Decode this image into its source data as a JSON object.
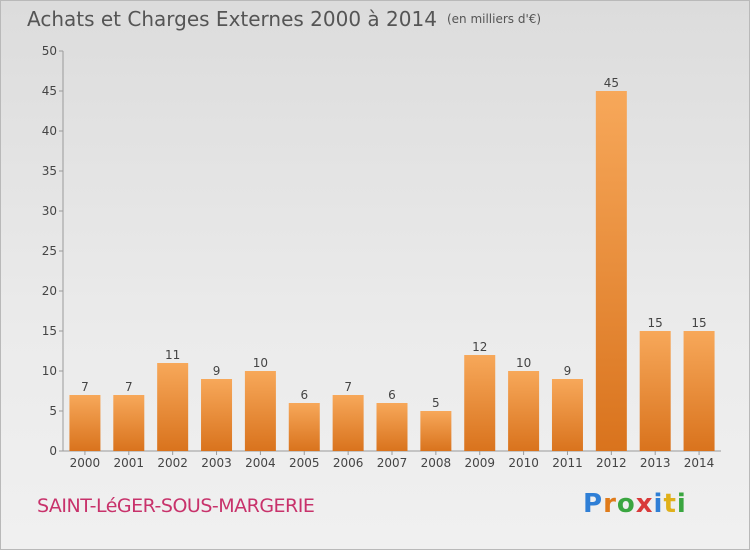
{
  "chart_data": {
    "type": "bar",
    "title": "Achats et Charges Externes 2000 à 2014",
    "unit_label": "(en milliers d'€)",
    "xlabel": "",
    "ylabel": "",
    "categories": [
      "2000",
      "2001",
      "2002",
      "2003",
      "2004",
      "2005",
      "2006",
      "2007",
      "2008",
      "2009",
      "2010",
      "2011",
      "2012",
      "2013",
      "2014"
    ],
    "values": [
      7,
      7,
      11,
      9,
      10,
      6,
      7,
      6,
      5,
      12,
      10,
      9,
      45,
      15,
      15
    ],
    "ylim": [
      0,
      50
    ],
    "yticks": [
      0,
      5,
      10,
      15,
      20,
      25,
      30,
      35,
      40,
      45,
      50
    ],
    "grid": false,
    "bar_color": "#e8892e"
  },
  "footer": {
    "commune": "SAINT-LéGER-SOUS-MARGERIE",
    "brand_letters": [
      {
        "ch": "P",
        "color": "#2f7fd6"
      },
      {
        "ch": "r",
        "color": "#e07b1a"
      },
      {
        "ch": "o",
        "color": "#3aa640"
      },
      {
        "ch": "x",
        "color": "#d93a3a"
      },
      {
        "ch": "i",
        "color": "#2f7fd6"
      },
      {
        "ch": "t",
        "color": "#e0b01a"
      },
      {
        "ch": "i",
        "color": "#3aa640"
      }
    ]
  }
}
